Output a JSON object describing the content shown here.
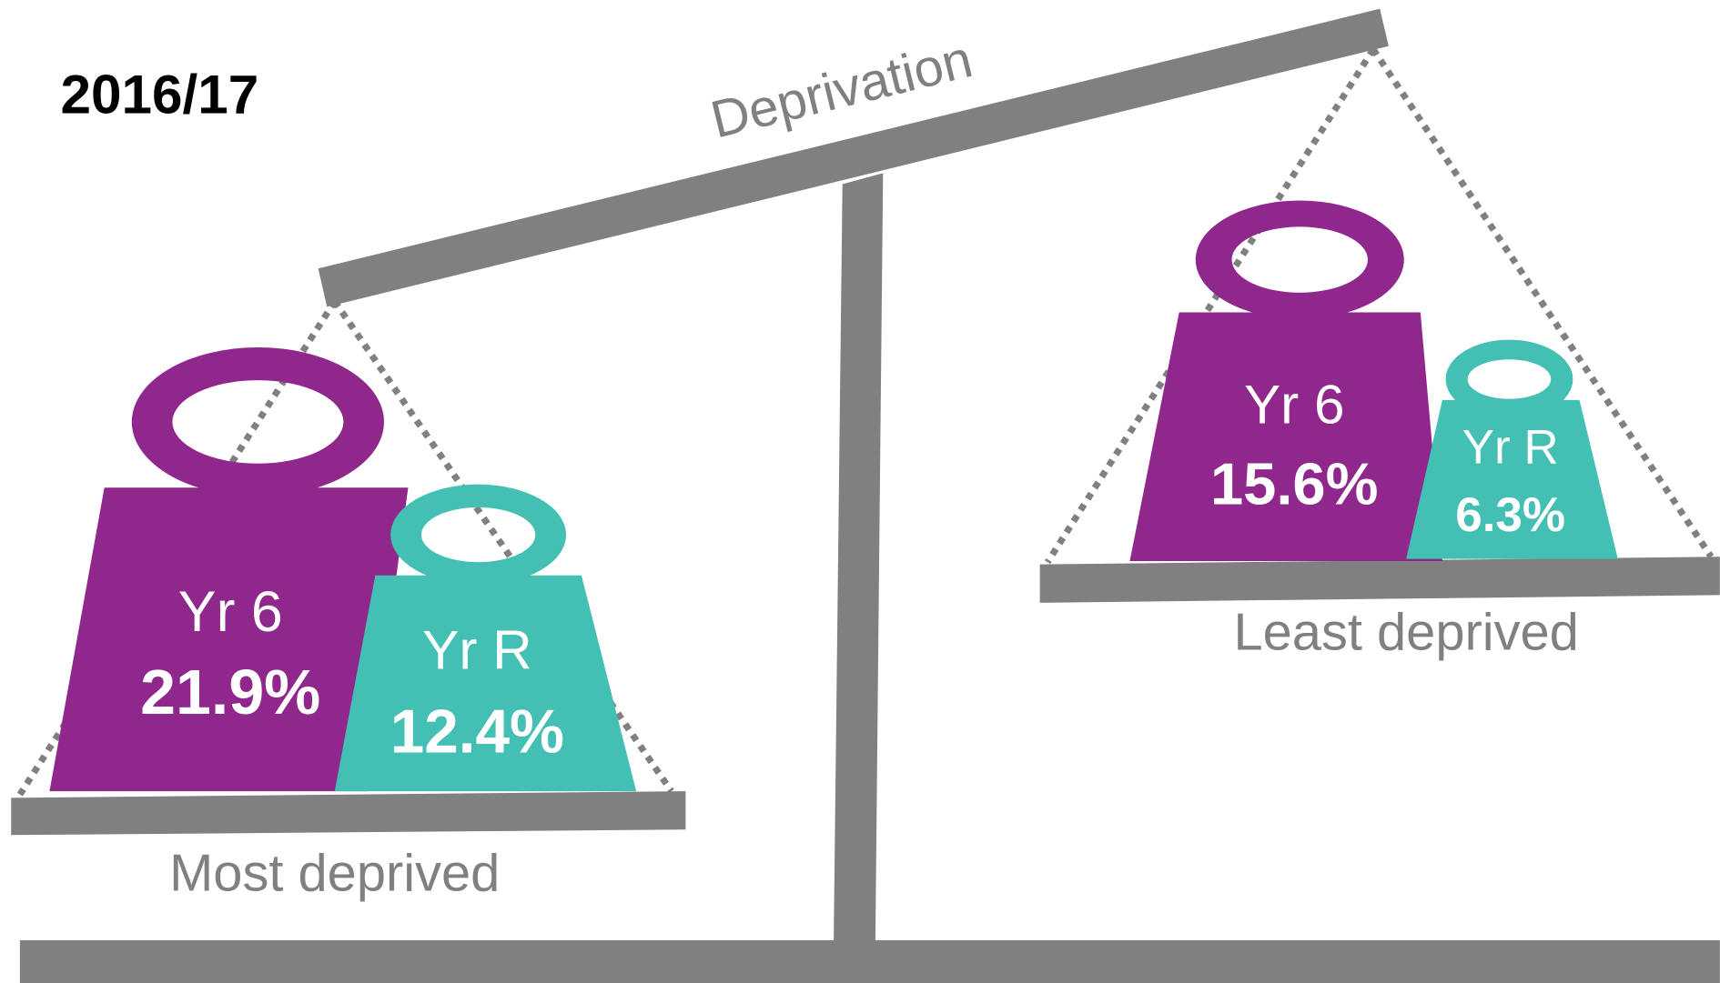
{
  "title": "2016/17",
  "beam_label": "Deprivation",
  "groups": [
    {
      "label": "Most deprived",
      "weights": [
        {
          "name": "Yr 6",
          "value": "21.9%"
        },
        {
          "name": "Yr R",
          "value": "12.4%"
        }
      ]
    },
    {
      "label": "Least deprived",
      "weights": [
        {
          "name": "Yr 6",
          "value": "15.6%"
        },
        {
          "name": "Yr R",
          "value": "6.3%"
        }
      ]
    }
  ]
}
